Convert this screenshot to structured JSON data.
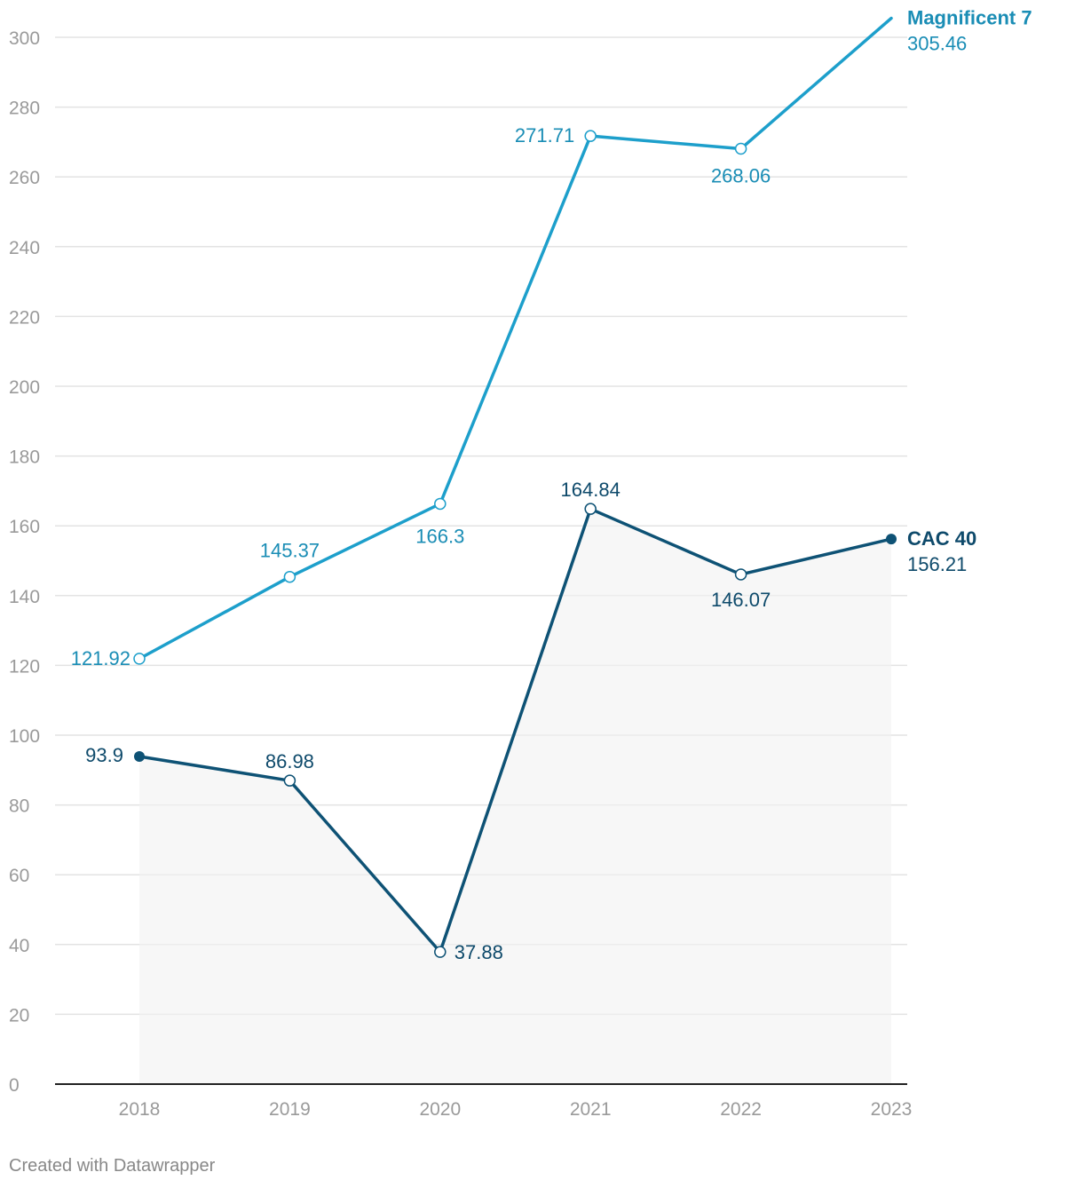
{
  "chart_data": {
    "type": "line",
    "title": "",
    "xlabel": "",
    "ylabel": "",
    "categories": [
      "2018",
      "2019",
      "2020",
      "2021",
      "2022",
      "2023"
    ],
    "ylim": [
      0,
      300
    ],
    "yticks": [
      0,
      20,
      40,
      60,
      80,
      100,
      120,
      140,
      160,
      180,
      200,
      220,
      240,
      260,
      280,
      300
    ],
    "grid": true,
    "series": [
      {
        "name": "Magnificent 7",
        "color": "#1d9fcb",
        "label_color": "#1a8db5",
        "values": [
          121.92,
          145.37,
          166.3,
          271.71,
          268.06,
          305.46
        ],
        "value_labels": [
          "121.92",
          "145.37",
          "166.3",
          "271.71",
          "268.06",
          "305.46"
        ],
        "area": false
      },
      {
        "name": "CAC 40",
        "color": "#0e5275",
        "label_color": "#0e4a6b",
        "values": [
          93.9,
          86.98,
          37.88,
          164.84,
          146.07,
          156.21
        ],
        "value_labels": [
          "93.9",
          "86.98",
          "37.88",
          "164.84",
          "146.07",
          "156.21"
        ],
        "area": true
      }
    ]
  },
  "footer": {
    "credit": "Created with Datawrapper"
  }
}
